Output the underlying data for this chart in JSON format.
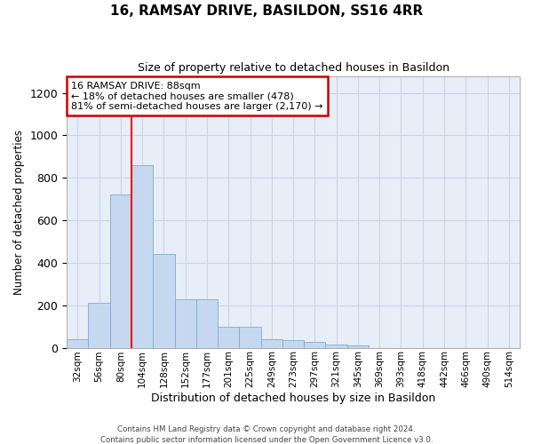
{
  "title": "16, RAMSAY DRIVE, BASILDON, SS16 4RR",
  "subtitle": "Size of property relative to detached houses in Basildon",
  "xlabel": "Distribution of detached houses by size in Basildon",
  "ylabel": "Number of detached properties",
  "bins": [
    "32sqm",
    "56sqm",
    "80sqm",
    "104sqm",
    "128sqm",
    "152sqm",
    "177sqm",
    "201sqm",
    "225sqm",
    "249sqm",
    "273sqm",
    "297sqm",
    "321sqm",
    "345sqm",
    "369sqm",
    "393sqm",
    "418sqm",
    "442sqm",
    "466sqm",
    "490sqm",
    "514sqm"
  ],
  "values": [
    40,
    210,
    720,
    860,
    440,
    230,
    230,
    100,
    100,
    38,
    35,
    28,
    15,
    10,
    0,
    0,
    0,
    0,
    0,
    0,
    0
  ],
  "bar_color": "#c5d8f0",
  "bar_edge_color": "#7aadcf",
  "grid_color": "#c8d4e6",
  "background_color": "#e8eef8",
  "red_line_color": "red",
  "annotation_text": "16 RAMSAY DRIVE: 88sqm\n← 18% of detached houses are smaller (478)\n81% of semi-detached houses are larger (2,170) →",
  "annotation_box_facecolor": "white",
  "annotation_box_edgecolor": "#cc0000",
  "footer_text": "Contains HM Land Registry data © Crown copyright and database right 2024.\nContains public sector information licensed under the Open Government Licence v3.0.",
  "ylim": [
    0,
    1280
  ],
  "yticks": [
    0,
    200,
    400,
    600,
    800,
    1000,
    1200
  ],
  "red_line_bin_index": 2.5
}
